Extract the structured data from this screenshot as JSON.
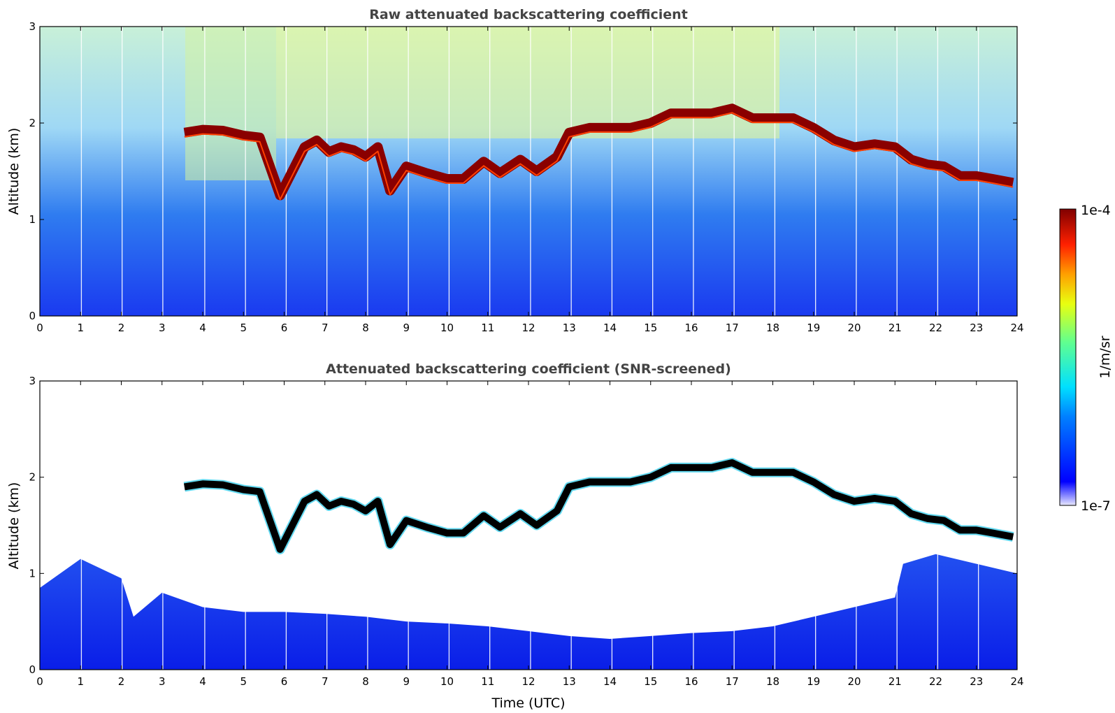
{
  "chart_data": [
    {
      "type": "heatmap",
      "title": "Raw attenuated backscattering coefficient",
      "xlabel": "",
      "ylabel": "Altitude (km)",
      "xlim": [
        0,
        24
      ],
      "ylim": [
        0,
        3
      ],
      "xticks": [
        "0",
        "1",
        "2",
        "3",
        "4",
        "5",
        "6",
        "7",
        "8",
        "9",
        "10",
        "11",
        "12",
        "13",
        "14",
        "15",
        "16",
        "17",
        "18",
        "19",
        "20",
        "21",
        "22",
        "23",
        "24"
      ],
      "yticks": [
        "0",
        "1",
        "2",
        "3"
      ],
      "x_tick_values": [
        0,
        1,
        2,
        3,
        4,
        5,
        6,
        7,
        8,
        9,
        10,
        11,
        12,
        13,
        14,
        15,
        16,
        17,
        18,
        19,
        20,
        21,
        22,
        23,
        24
      ],
      "y_tick_values": [
        0,
        1,
        2,
        3
      ],
      "data_gap_lines_utc": [
        1.02,
        2.02,
        3.02,
        4.05,
        5.05,
        6.05,
        7.05,
        8.05,
        9.05,
        10.05,
        11.05,
        12.05,
        13.05,
        14.05,
        15.05,
        16.05,
        17.05,
        18.05,
        19.05,
        20.05,
        21.05,
        22.05,
        23.05
      ],
      "cloud_layer": {
        "series_name": "cloud base",
        "x": [
          3.55,
          4.0,
          4.5,
          5.0,
          5.4,
          5.9,
          6.2,
          6.5,
          6.8,
          7.1,
          7.4,
          7.7,
          8.0,
          8.3,
          8.6,
          9.0,
          9.5,
          10.0,
          10.4,
          10.9,
          11.3,
          11.8,
          12.2,
          12.7,
          13.0,
          13.5,
          14.0,
          14.5,
          15.0,
          15.5,
          16.0,
          16.5,
          17.0,
          17.5,
          18.0,
          18.5,
          19.0,
          19.5,
          20.0,
          20.5,
          21.0,
          21.4,
          21.8,
          22.2,
          22.6,
          23.0,
          23.4,
          23.9
        ],
        "y": [
          1.9,
          1.93,
          1.92,
          1.87,
          1.85,
          1.25,
          1.5,
          1.75,
          1.82,
          1.7,
          1.75,
          1.72,
          1.65,
          1.75,
          1.3,
          1.55,
          1.48,
          1.42,
          1.42,
          1.6,
          1.48,
          1.62,
          1.5,
          1.65,
          1.9,
          1.95,
          1.95,
          1.95,
          2.0,
          2.1,
          2.1,
          2.1,
          2.15,
          2.05,
          2.05,
          2.05,
          1.95,
          1.82,
          1.75,
          1.78,
          1.75,
          1.62,
          1.57,
          1.55,
          1.45,
          1.45,
          1.42,
          1.38
        ]
      }
    },
    {
      "type": "heatmap",
      "title": "Attenuated backscattering coefficient (SNR-screened)",
      "xlabel": "Time (UTC)",
      "ylabel": "Altitude (km)",
      "xlim": [
        0,
        24
      ],
      "ylim": [
        0,
        3
      ],
      "xticks": [
        "0",
        "1",
        "2",
        "3",
        "4",
        "5",
        "6",
        "7",
        "8",
        "9",
        "10",
        "11",
        "12",
        "13",
        "14",
        "15",
        "16",
        "17",
        "18",
        "19",
        "20",
        "21",
        "22",
        "23",
        "24"
      ],
      "yticks": [
        "0",
        "1",
        "2",
        "3"
      ],
      "x_tick_values": [
        0,
        1,
        2,
        3,
        4,
        5,
        6,
        7,
        8,
        9,
        10,
        11,
        12,
        13,
        14,
        15,
        16,
        17,
        18,
        19,
        20,
        21,
        22,
        23,
        24
      ],
      "y_tick_values": [
        0,
        1,
        2,
        3
      ],
      "boundary_layer_top": {
        "series_name": "aerosol top",
        "x": [
          0,
          1,
          2,
          2.3,
          3,
          4,
          5,
          6,
          7,
          8,
          9,
          10,
          11,
          12,
          13,
          14,
          15,
          16,
          17,
          18,
          19,
          20,
          21,
          21.2,
          22,
          23,
          24
        ],
        "y": [
          0.85,
          1.15,
          0.95,
          0.55,
          0.8,
          0.65,
          0.6,
          0.6,
          0.58,
          0.55,
          0.5,
          0.48,
          0.45,
          0.4,
          0.35,
          0.32,
          0.35,
          0.38,
          0.4,
          0.45,
          0.55,
          0.65,
          0.75,
          1.1,
          1.2,
          1.1,
          1.0
        ]
      }
    }
  ],
  "colorbar": {
    "label": "1/m/sr",
    "max_label": "1e-4",
    "min_label": "1e-7",
    "colormap": "jet",
    "scale": "log"
  },
  "colors": {
    "jet_low": "#0000ff",
    "jet_high": "#800000",
    "cloud_screened": "#000000",
    "title": "#444444"
  }
}
